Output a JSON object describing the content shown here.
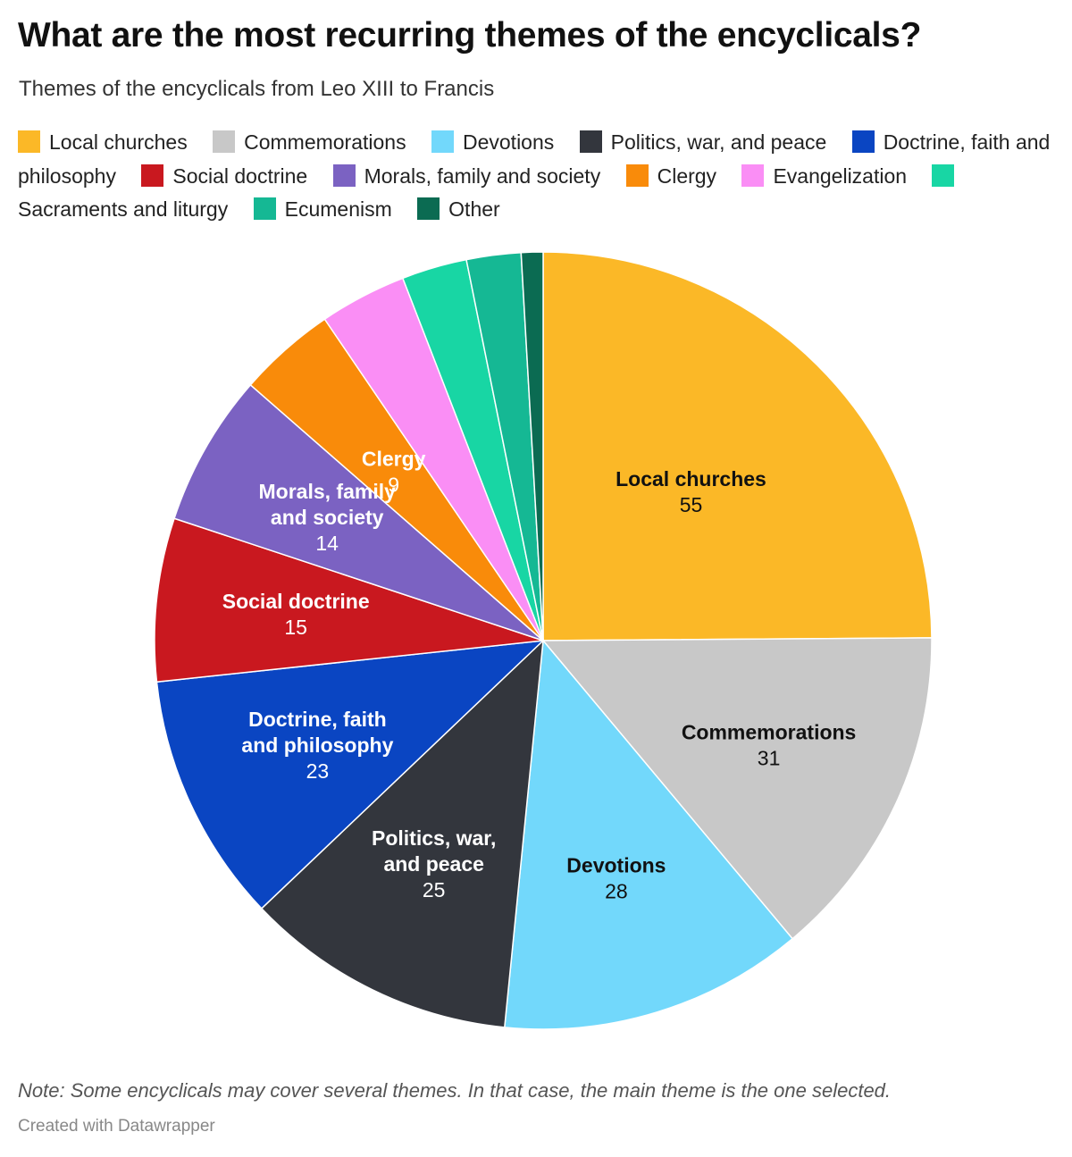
{
  "header": {
    "title": "What are the most recurring themes of the encyclicals?",
    "subtitle": "Themes of the encyclicals from Leo XIII to Francis"
  },
  "chart_data": {
    "type": "pie",
    "title": "What are the most recurring themes of the encyclicals?",
    "subtitle": "Themes of the encyclicals from Leo XIII to Francis",
    "legend_position": "top",
    "slices": [
      {
        "name": "Local churches",
        "value": 55,
        "color": "#fbb827",
        "label_lines": [
          "Local churches"
        ],
        "label_color": "#111111",
        "show_label": true
      },
      {
        "name": "Commemorations",
        "value": 31,
        "color": "#c8c8c8",
        "label_lines": [
          "Commemorations"
        ],
        "label_color": "#111111",
        "show_label": true
      },
      {
        "name": "Devotions",
        "value": 28,
        "color": "#72d8fb",
        "label_lines": [
          "Devotions"
        ],
        "label_color": "#111111",
        "show_label": true
      },
      {
        "name": "Politics, war, and peace",
        "value": 25,
        "color": "#33363d",
        "label_lines": [
          "Politics, war,",
          "and peace"
        ],
        "label_color": "#ffffff",
        "show_label": true
      },
      {
        "name": "Doctrine, faith and philosophy",
        "value": 23,
        "color": "#0a45c2",
        "label_lines": [
          "Doctrine, faith",
          "and philosophy"
        ],
        "label_color": "#ffffff",
        "show_label": true
      },
      {
        "name": "Social doctrine",
        "value": 15,
        "color": "#c9181f",
        "label_lines": [
          "Social doctrine"
        ],
        "label_color": "#ffffff",
        "show_label": true
      },
      {
        "name": "Morals, family and society",
        "value": 14,
        "color": "#7b62c2",
        "label_lines": [
          "Morals, family",
          "and society"
        ],
        "label_color": "#ffffff",
        "show_label": true
      },
      {
        "name": "Clergy",
        "value": 9,
        "color": "#f98b0a",
        "label_lines": [
          "Clergy"
        ],
        "label_color": "#ffffff",
        "show_label": true
      },
      {
        "name": "Evangelization",
        "value": 8,
        "color": "#fa8ef5",
        "label_lines": [
          "Evangelization"
        ],
        "label_color": "#111111",
        "show_label": false
      },
      {
        "name": "Sacraments and liturgy",
        "value": 6,
        "color": "#18d6a4",
        "label_lines": [
          "Sacraments and liturgy"
        ],
        "label_color": "#111111",
        "show_label": false
      },
      {
        "name": "Ecumenism",
        "value": 5,
        "color": "#15b894",
        "label_lines": [
          "Ecumenism"
        ],
        "label_color": "#111111",
        "show_label": false
      },
      {
        "name": "Other",
        "value": 2,
        "color": "#0b6b52",
        "label_lines": [
          "Other"
        ],
        "label_color": "#ffffff",
        "show_label": false
      }
    ]
  },
  "footer": {
    "note": "Note: Some encyclicals may cover several themes. In that case, the main theme is the one selected.",
    "credit": "Created with Datawrapper"
  }
}
